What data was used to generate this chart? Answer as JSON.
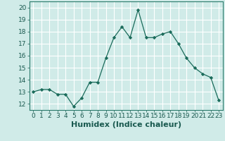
{
  "x": [
    0,
    1,
    2,
    3,
    4,
    5,
    6,
    7,
    8,
    9,
    10,
    11,
    12,
    13,
    14,
    15,
    16,
    17,
    18,
    19,
    20,
    21,
    22,
    23
  ],
  "y": [
    13.0,
    13.2,
    13.2,
    12.8,
    12.8,
    11.8,
    12.5,
    13.8,
    13.8,
    15.8,
    17.5,
    18.4,
    17.5,
    19.8,
    17.5,
    17.5,
    17.8,
    18.0,
    17.0,
    15.8,
    15.0,
    14.5,
    14.2,
    12.3
  ],
  "xlabel": "Humidex (Indice chaleur)",
  "xlim": [
    -0.5,
    23.5
  ],
  "ylim": [
    11.5,
    20.5
  ],
  "yticks": [
    12,
    13,
    14,
    15,
    16,
    17,
    18,
    19,
    20
  ],
  "xticks": [
    0,
    1,
    2,
    3,
    4,
    5,
    6,
    7,
    8,
    9,
    10,
    11,
    12,
    13,
    14,
    15,
    16,
    17,
    18,
    19,
    20,
    21,
    22,
    23
  ],
  "line_color": "#1a6b5a",
  "marker_color": "#1a6b5a",
  "bg_color": "#d0ebe8",
  "grid_color": "#ffffff",
  "xlabel_fontsize": 8,
  "tick_fontsize": 6.5,
  "spine_color": "#2a7a6a"
}
